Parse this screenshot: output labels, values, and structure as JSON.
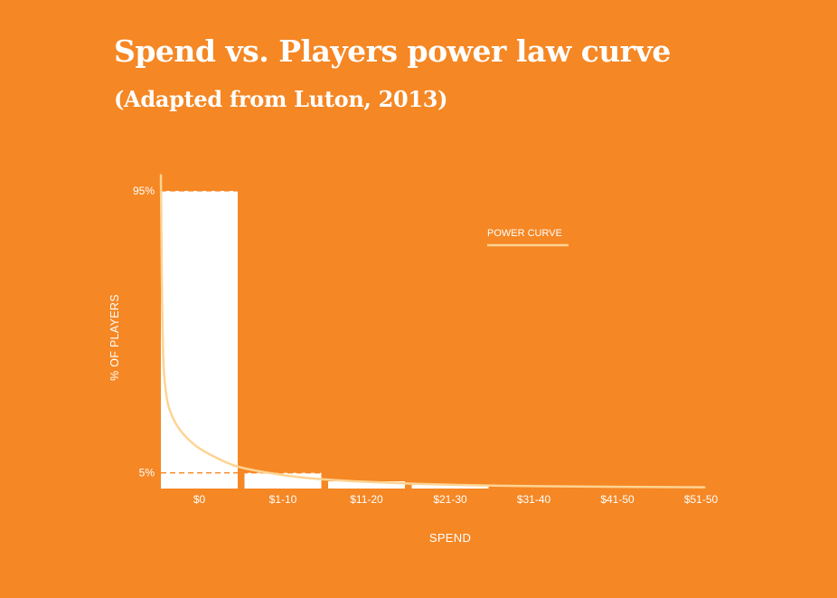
{
  "chart_data": {
    "type": "bar",
    "title": "Spend vs. Players power law curve",
    "subtitle": "(Adapted from Luton, 2013)",
    "xlabel": "SPEND",
    "ylabel": "% OF PLAYERS",
    "categories": [
      "$0",
      "$1-10",
      "$11-20",
      "$21-30",
      "$31-40",
      "$41-50",
      "$51-50"
    ],
    "values": [
      95,
      5,
      2.3,
      1.2,
      0,
      0,
      0
    ],
    "y_ticks": [
      {
        "value": 5,
        "label": "5%"
      },
      {
        "value": 95,
        "label": "95%"
      }
    ],
    "ylim": [
      0,
      95
    ],
    "reference_lines": [
      95,
      5
    ],
    "series": [
      {
        "name": "POWER CURVE",
        "type": "line",
        "x": [
          0,
          0.02,
          0.06,
          0.1,
          0.2,
          0.35,
          0.5,
          0.8,
          1.0,
          1.5,
          2.0,
          3.0,
          4.0,
          5.0,
          6.0,
          6.5
        ],
        "values": [
          100,
          42,
          30,
          25,
          19.4,
          15,
          12,
          8,
          6.3,
          4,
          2.7,
          1.5,
          0.9,
          0.6,
          0.5,
          0.4
        ]
      }
    ],
    "legend_position": "top-right",
    "grid": false,
    "colors": {
      "background": "#F58724",
      "bars": "#FFFFFF",
      "curve": "#FDD493",
      "reference_line": "#F58724",
      "text": "#FFFFFF"
    }
  }
}
